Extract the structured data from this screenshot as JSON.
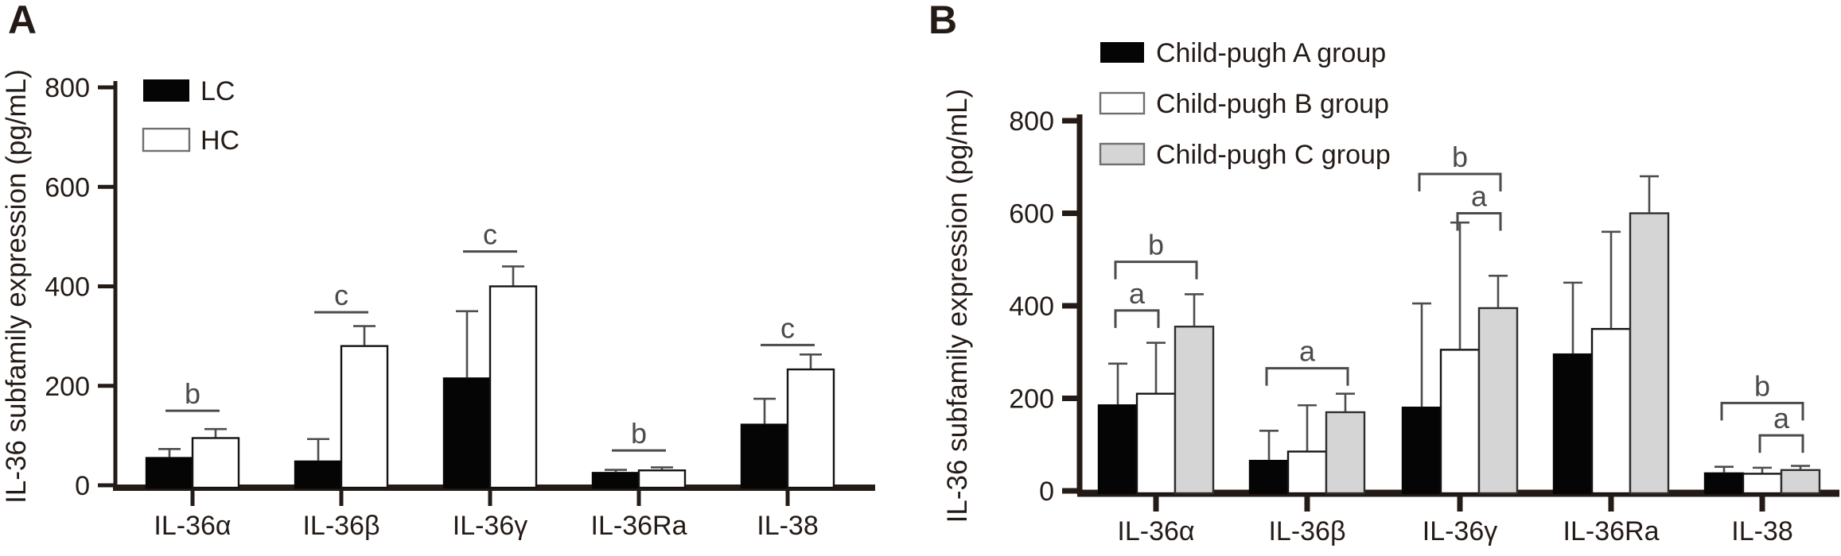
{
  "ink_color": "#241b17",
  "significance_color": "#4b4b4b",
  "error_bar_color": "#4d4d4d",
  "chart_data": [
    {
      "type": "bar",
      "panel_label": "A",
      "ylabel": "IL-36 subfamily expression (pg/mL)",
      "ylim": [
        0,
        800
      ],
      "yticks": [
        0,
        200,
        400,
        600,
        800
      ],
      "grid": false,
      "legend_position": "top-left-inside",
      "categories": [
        "IL-36α",
        "IL-36β",
        "IL-36γ",
        "IL-36Ra",
        "IL-38"
      ],
      "series": [
        {
          "name": "LC",
          "fill": "#050505",
          "values": [
            55,
            48,
            215,
            25,
            122
          ],
          "errors_up": [
            18,
            45,
            135,
            6,
            52
          ]
        },
        {
          "name": "HC",
          "fill": "#ffffff",
          "values": [
            95,
            280,
            400,
            30,
            233
          ],
          "errors_up": [
            18,
            40,
            40,
            6,
            30
          ]
        }
      ],
      "significance": [
        {
          "label": "b",
          "style": "line",
          "category_index": 0,
          "series_from": 0,
          "series_to": 1,
          "y_value": 150
        },
        {
          "label": "c",
          "style": "line",
          "category_index": 1,
          "series_from": 0,
          "series_to": 1,
          "y_value": 348
        },
        {
          "label": "c",
          "style": "line",
          "category_index": 2,
          "series_from": 0,
          "series_to": 1,
          "y_value": 470
        },
        {
          "label": "b",
          "style": "line",
          "category_index": 3,
          "series_from": 0,
          "series_to": 1,
          "y_value": 70
        },
        {
          "label": "c",
          "style": "line",
          "category_index": 4,
          "series_from": 0,
          "series_to": 1,
          "y_value": 282
        }
      ]
    },
    {
      "type": "bar",
      "panel_label": "B",
      "ylabel": "IL-36 subfamily expression (pg/mL)",
      "ylim": [
        0,
        800
      ],
      "yticks": [
        0,
        200,
        400,
        600,
        800
      ],
      "grid": false,
      "legend_position": "top-left-inside",
      "categories": [
        "IL-36α",
        "IL-36β",
        "IL-36γ",
        "IL-36Ra",
        "IL-38"
      ],
      "series": [
        {
          "name": "Child-pugh A group",
          "fill": "#050505",
          "values": [
            185,
            65,
            180,
            295,
            38
          ],
          "errors_up": [
            90,
            65,
            225,
            155,
            14
          ]
        },
        {
          "name": "Child-pugh B group",
          "fill": "#ffffff",
          "values": [
            210,
            85,
            305,
            350,
            37
          ],
          "errors_up": [
            110,
            100,
            275,
            210,
            13
          ]
        },
        {
          "name": "Child-pugh C group",
          "fill": "#d5d5d5",
          "values": [
            355,
            170,
            395,
            600,
            45
          ],
          "errors_up": [
            70,
            40,
            70,
            80,
            9
          ]
        }
      ],
      "significance": [
        {
          "label": "a",
          "style": "bracket",
          "category_index": 0,
          "series_from": 0,
          "series_to": 1,
          "y_value": 390
        },
        {
          "label": "b",
          "style": "bracket",
          "category_index": 0,
          "series_from": 0,
          "series_to": 2,
          "y_value": 495
        },
        {
          "label": "a",
          "style": "bracket",
          "category_index": 1,
          "series_from": 0,
          "series_to": 2,
          "y_value": 265
        },
        {
          "label": "a",
          "style": "bracket",
          "category_index": 2,
          "series_from": 1,
          "series_to": 2,
          "y_value": 600
        },
        {
          "label": "b",
          "style": "bracket",
          "category_index": 2,
          "series_from": 0,
          "series_to": 2,
          "y_value": 685
        },
        {
          "label": "a",
          "style": "bracket",
          "category_index": 4,
          "series_from": 1,
          "series_to": 2,
          "y_value": 120
        },
        {
          "label": "b",
          "style": "bracket",
          "category_index": 4,
          "series_from": 0,
          "series_to": 2,
          "y_value": 190
        }
      ]
    }
  ]
}
